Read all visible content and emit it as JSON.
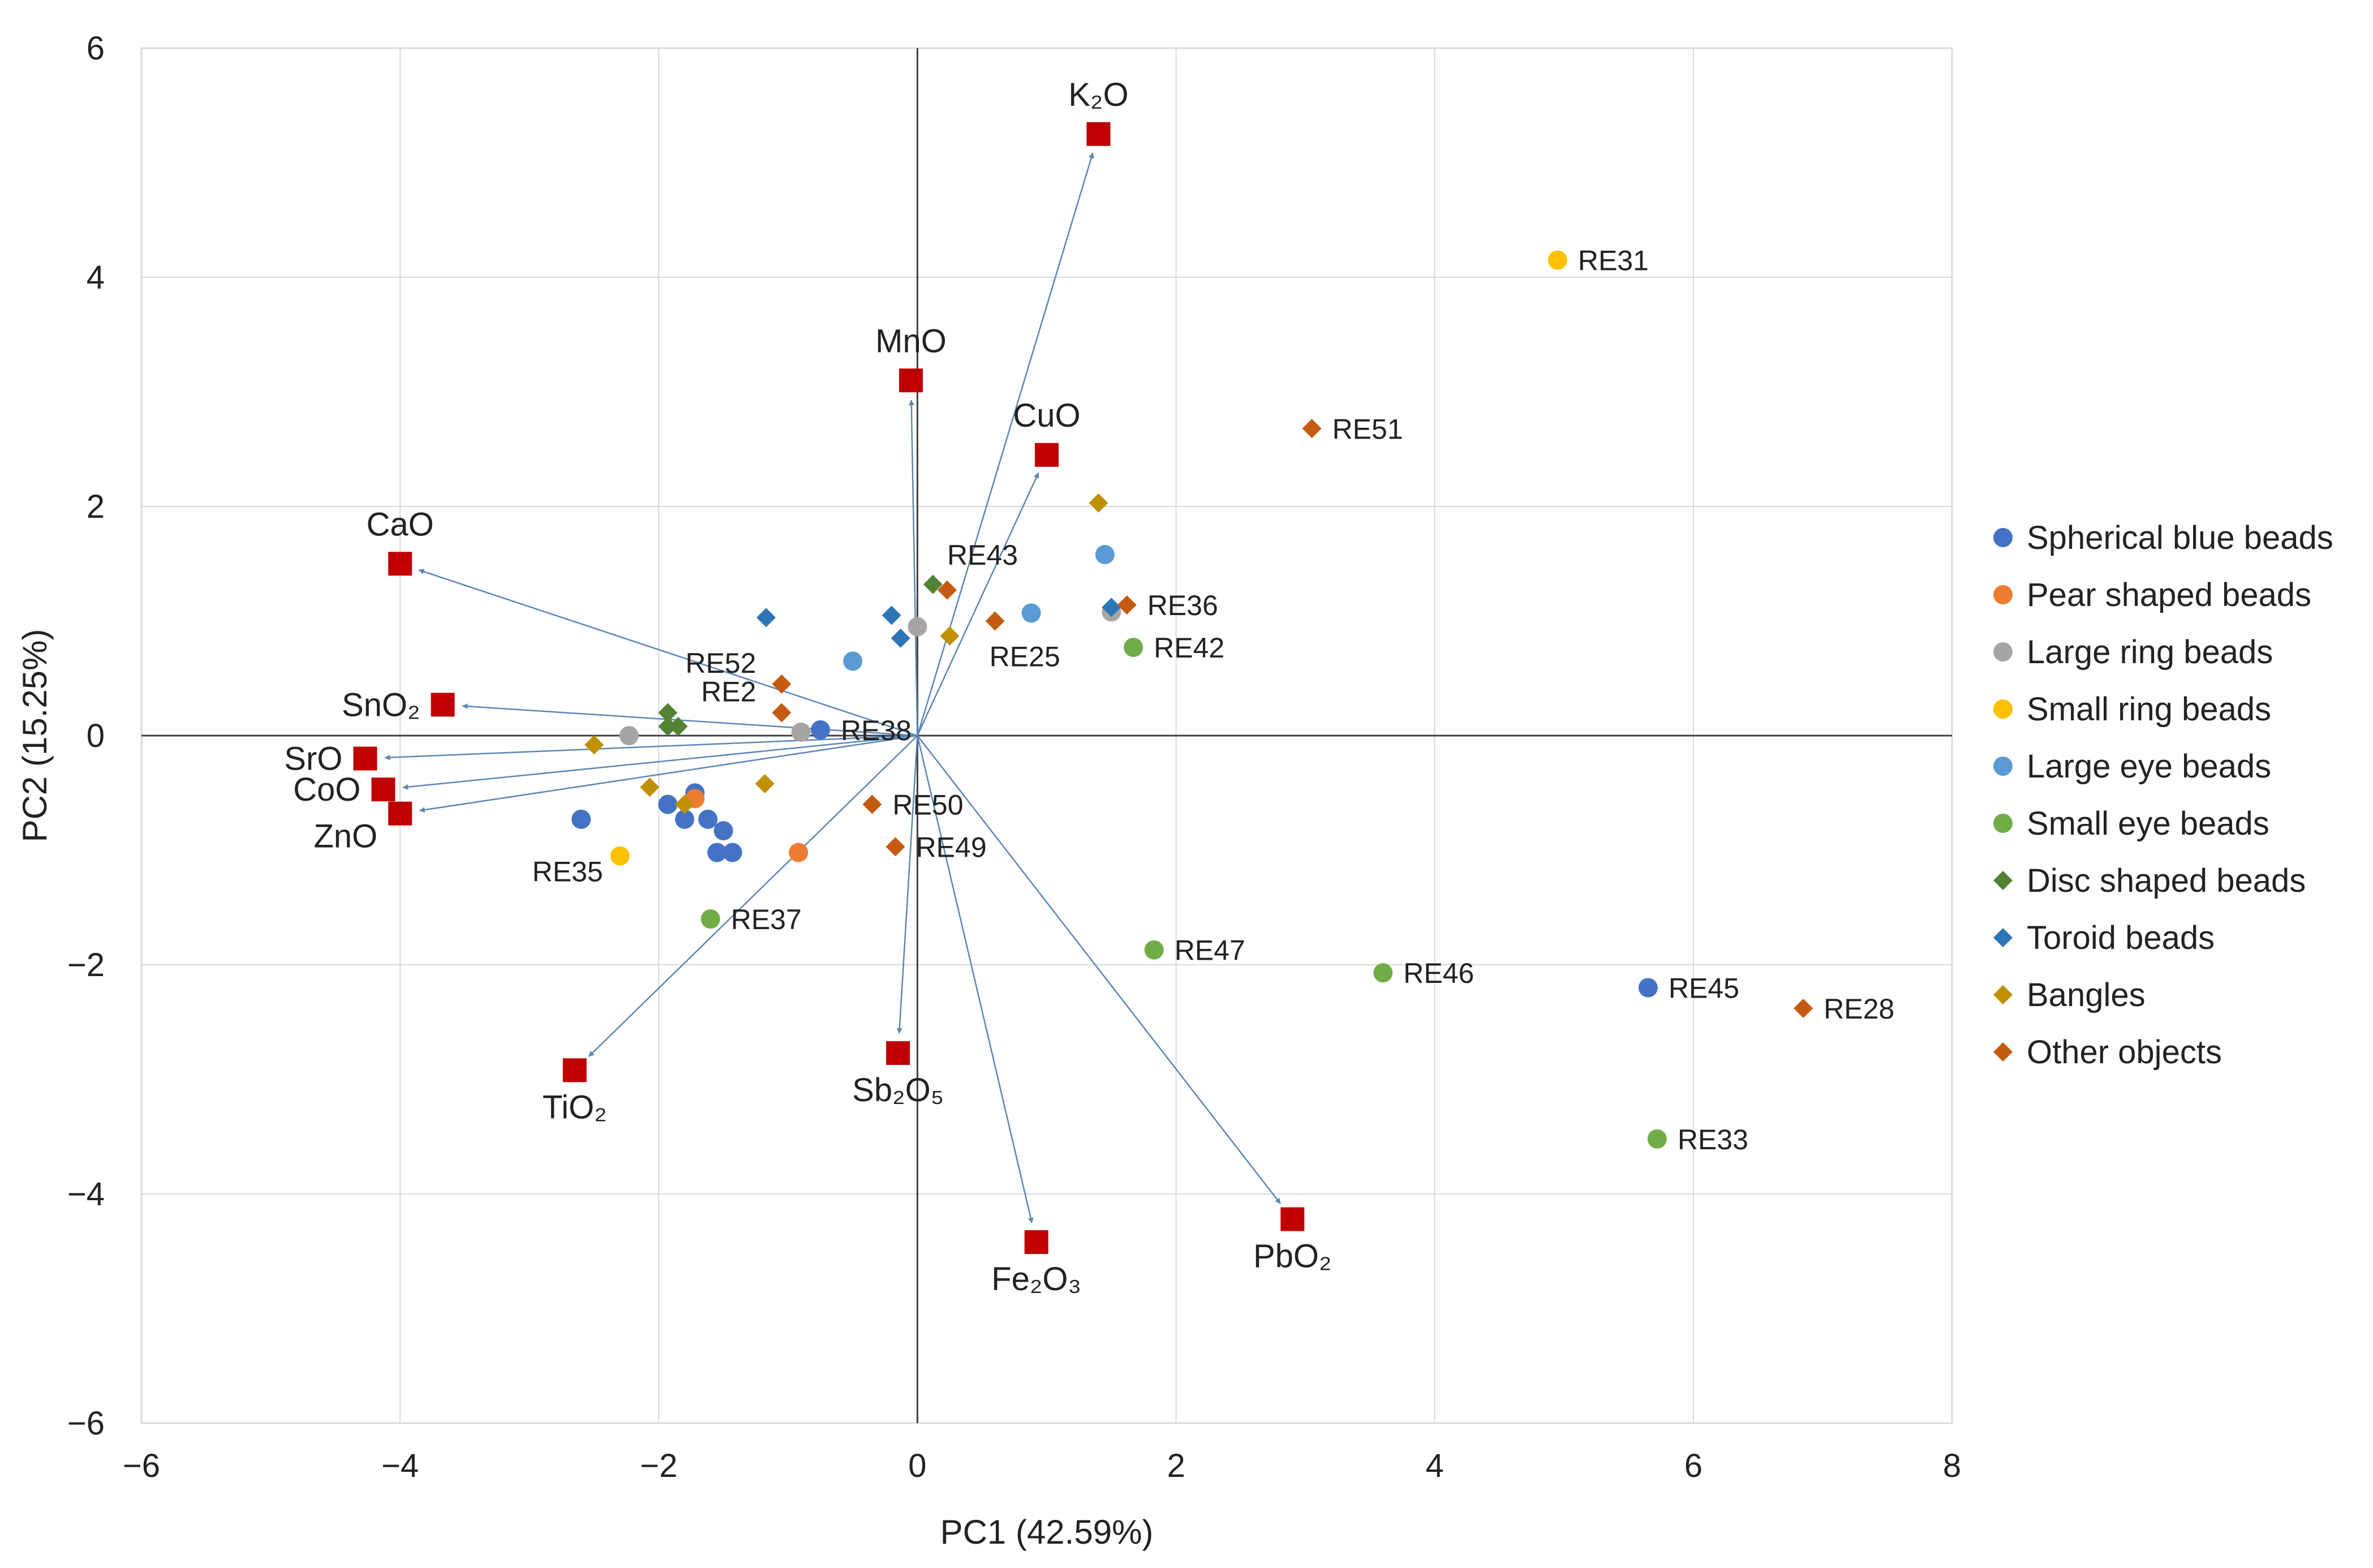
{
  "chart_data": {
    "type": "scatter",
    "subtype": "pca-biplot",
    "title": "",
    "xlabel": "PC1 (42.59%)",
    "ylabel": "PC2 (15.25%)",
    "xlim": [
      -6,
      8
    ],
    "ylim": [
      -6,
      6
    ],
    "xticks": [
      {
        "value": -6,
        "label": "−6"
      },
      {
        "value": -4,
        "label": "−4"
      },
      {
        "value": -2,
        "label": "−2"
      },
      {
        "value": 0,
        "label": "0"
      },
      {
        "value": 2,
        "label": "2"
      },
      {
        "value": 4,
        "label": "4"
      },
      {
        "value": 6,
        "label": "6"
      },
      {
        "value": 8,
        "label": "8"
      }
    ],
    "yticks": [
      {
        "value": -6,
        "label": "−6"
      },
      {
        "value": -4,
        "label": "−4"
      },
      {
        "value": -2,
        "label": "−2"
      },
      {
        "value": 0,
        "label": "0"
      },
      {
        "value": 2,
        "label": "2"
      },
      {
        "value": 4,
        "label": "4"
      },
      {
        "value": 6,
        "label": "6"
      }
    ],
    "grid": true,
    "legend_position": "right",
    "loadings_color": "#c00000",
    "arrow_color": "#5b86b5",
    "loadings": [
      {
        "name": "K₂O",
        "x": 1.4,
        "y": 5.25,
        "label_pos": "above"
      },
      {
        "name": "MnO",
        "x": -0.05,
        "y": 3.1,
        "label_pos": "above"
      },
      {
        "name": "CuO",
        "x": 1.0,
        "y": 2.45,
        "label_pos": "above"
      },
      {
        "name": "CaO",
        "x": -4.0,
        "y": 1.5,
        "label_pos": "above"
      },
      {
        "name": "SnO₂",
        "x": -3.67,
        "y": 0.27,
        "label_pos": "left"
      },
      {
        "name": "SrO",
        "x": -4.27,
        "y": -0.2,
        "label_pos": "left"
      },
      {
        "name": "CoO",
        "x": -4.13,
        "y": -0.47,
        "label_pos": "left"
      },
      {
        "name": "ZnO",
        "x": -4.0,
        "y": -0.68,
        "label_pos": "below-left"
      },
      {
        "name": "TiO₂",
        "x": -2.65,
        "y": -2.92,
        "label_pos": "below"
      },
      {
        "name": "Sb₂O₅",
        "x": -0.15,
        "y": -2.77,
        "label_pos": "below"
      },
      {
        "name": "Fe₂O₃",
        "x": 0.92,
        "y": -4.42,
        "label_pos": "below"
      },
      {
        "name": "PbO₂",
        "x": 2.9,
        "y": -4.22,
        "label_pos": "below"
      }
    ],
    "series": [
      {
        "name": "Spherical blue beads",
        "marker": "circle",
        "color": "#4472c4",
        "points": [
          {
            "x": -2.6,
            "y": -0.73,
            "label": ""
          },
          {
            "x": -1.93,
            "y": -0.6,
            "label": ""
          },
          {
            "x": -1.8,
            "y": -0.73,
            "label": ""
          },
          {
            "x": -1.72,
            "y": -0.5,
            "label": ""
          },
          {
            "x": -1.62,
            "y": -0.73,
            "label": ""
          },
          {
            "x": -1.5,
            "y": -0.83,
            "label": ""
          },
          {
            "x": -1.55,
            "y": -1.02,
            "label": ""
          },
          {
            "x": -1.43,
            "y": -1.02,
            "label": ""
          },
          {
            "x": -0.75,
            "y": 0.05,
            "label": "RE38"
          },
          {
            "x": 5.65,
            "y": -2.2,
            "label": "RE45"
          }
        ]
      },
      {
        "name": "Pear shaped beads",
        "marker": "circle",
        "color": "#ed7d31",
        "points": [
          {
            "x": -1.72,
            "y": -0.55,
            "label": ""
          },
          {
            "x": -0.92,
            "y": -1.02,
            "label": ""
          }
        ]
      },
      {
        "name": "Large ring beads",
        "marker": "circle",
        "color": "#a5a5a5",
        "points": [
          {
            "x": -2.23,
            "y": 0.0,
            "label": ""
          },
          {
            "x": -0.9,
            "y": 0.03,
            "label": ""
          },
          {
            "x": 0.0,
            "y": 0.95,
            "label": ""
          },
          {
            "x": 1.5,
            "y": 1.08,
            "label": ""
          }
        ]
      },
      {
        "name": "Small ring beads",
        "marker": "circle",
        "color": "#ffc000",
        "points": [
          {
            "x": -2.3,
            "y": -1.05,
            "label": "RE35"
          },
          {
            "x": 4.95,
            "y": 4.15,
            "label": "RE31"
          }
        ]
      },
      {
        "name": "Large eye beads",
        "marker": "circle",
        "color": "#5b9bd5",
        "points": [
          {
            "x": -0.5,
            "y": 0.65,
            "label": ""
          },
          {
            "x": 0.88,
            "y": 1.07,
            "label": ""
          },
          {
            "x": 1.45,
            "y": 1.58,
            "label": ""
          }
        ]
      },
      {
        "name": "Small eye beads",
        "marker": "circle",
        "color": "#70ad47",
        "points": [
          {
            "x": -1.6,
            "y": -1.6,
            "label": "RE37"
          },
          {
            "x": 1.67,
            "y": 0.77,
            "label": "RE42"
          },
          {
            "x": 1.83,
            "y": -1.87,
            "label": "RE47"
          },
          {
            "x": 3.6,
            "y": -2.07,
            "label": "RE46"
          },
          {
            "x": 5.72,
            "y": -3.52,
            "label": "RE33"
          }
        ]
      },
      {
        "name": "Disc shaped beads",
        "marker": "diamond",
        "color": "#548235",
        "points": [
          {
            "x": -1.93,
            "y": 0.2,
            "label": ""
          },
          {
            "x": -1.93,
            "y": 0.08,
            "label": ""
          },
          {
            "x": -1.85,
            "y": 0.08,
            "label": ""
          },
          {
            "x": 0.12,
            "y": 1.32,
            "label": ""
          }
        ]
      },
      {
        "name": "Toroid beads",
        "marker": "diamond",
        "color": "#2e75b6",
        "points": [
          {
            "x": -1.17,
            "y": 1.03,
            "label": ""
          },
          {
            "x": -0.2,
            "y": 1.05,
            "label": ""
          },
          {
            "x": -0.13,
            "y": 0.85,
            "label": ""
          },
          {
            "x": 1.5,
            "y": 1.12,
            "label": ""
          }
        ]
      },
      {
        "name": "Bangles",
        "marker": "diamond",
        "color": "#bf9000",
        "points": [
          {
            "x": -2.5,
            "y": -0.08,
            "label": ""
          },
          {
            "x": -2.07,
            "y": -0.45,
            "label": ""
          },
          {
            "x": -1.8,
            "y": -0.6,
            "label": ""
          },
          {
            "x": -1.18,
            "y": -0.42,
            "label": ""
          },
          {
            "x": 0.25,
            "y": 0.87,
            "label": ""
          },
          {
            "x": 1.4,
            "y": 2.03,
            "label": ""
          }
        ]
      },
      {
        "name": "Other objects",
        "marker": "diamond",
        "color": "#c55a11",
        "points": [
          {
            "x": -1.05,
            "y": 0.45,
            "label": "RE52"
          },
          {
            "x": -1.05,
            "y": 0.2,
            "label": "RE2"
          },
          {
            "x": 0.23,
            "y": 1.27,
            "label": "RE43"
          },
          {
            "x": 0.6,
            "y": 1.0,
            "label": "RE25"
          },
          {
            "x": 1.62,
            "y": 1.14,
            "label": "RE36"
          },
          {
            "x": -0.35,
            "y": -0.6,
            "label": "RE50"
          },
          {
            "x": -0.17,
            "y": -0.97,
            "label": "RE49"
          },
          {
            "x": 3.05,
            "y": 2.68,
            "label": "RE51"
          },
          {
            "x": 6.85,
            "y": -2.38,
            "label": "RE28"
          }
        ]
      }
    ]
  }
}
